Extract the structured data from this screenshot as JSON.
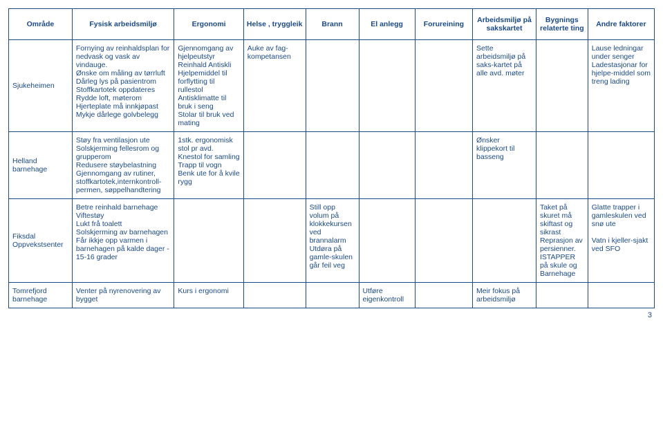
{
  "headers": {
    "omrade": "Område",
    "fysisk": "Fysisk arbeidsmiljø",
    "ergonomi": "Ergonomi",
    "helse": "Helse , tryggleik",
    "brann": "Brann",
    "el": "El anlegg",
    "forureining": "Forureining",
    "arbeidsmiljo": "Arbeidsmiljø på sakskartet",
    "bygnings": "Bygnings relaterte ting",
    "andre": "Andre faktorer"
  },
  "rows": [
    {
      "omrade": "Sjukeheimen",
      "fysisk": "Fornying av reinhaldsplan for nedvask og vask av vindauge.\nØnske om måling av tørrluft\nDårleg lys på pasientrom\nStoffkartotek oppdateres\nRydde loft, møterom\nHjerteplate må innkjøpast\nMykje dårlege golvbelegg",
      "ergonomi": "Gjennomgang av hjelpeutstyr\nReinhald Antiskli\nHjelpemiddel til forflytting til rullestol\nAntisklimatte til bruk i seng\nStolar til bruk ved mating",
      "helse": "Auke av fag-kompetansen",
      "brann": "",
      "el": "",
      "forureining": "",
      "arbeidsmiljo": "Sette arbeidsmiljø på saks-kartet på alle avd. møter",
      "bygnings": "",
      "andre": "Lause ledningar under senger\nLadestasjonar for hjelpe-middel som treng lading"
    },
    {
      "omrade": "Helland barnehage",
      "fysisk": "Støy fra ventilasjon ute\nSolskjerming fellesrom og grupperom\nRedusere støybelastning\nGjennomgang av rutiner, stoffkartotek,internkontroll-permen, søppelhandtering",
      "ergonomi": "1stk. ergonomisk stol pr avd.\nKnestol for samling\nTrapp til vogn\nBenk ute for å kvile rygg",
      "helse": "",
      "brann": "",
      "el": "",
      "forureining": "",
      "arbeidsmiljo": "Ønsker klippekort til basseng",
      "bygnings": "",
      "andre": ""
    },
    {
      "omrade": "Fiksdal Oppvekstsenter",
      "fysisk": "Betre reinhald barnehage\nViftestøy\nLukt frå toalett\nSolskjerming av barnehagen\nFår ikkje opp varmen i barnehagen på kalde dager  -  15-16 grader",
      "ergonomi": "",
      "helse": "",
      "brann": "Still opp volum på klokkekursen ved brannalarm\nUtdøra på gamle-skulen går feil veg",
      "el": "",
      "forureining": "",
      "arbeidsmiljo": "",
      "bygnings": "Taket på skuret må skiftast og sikrast\nReprasjon av persienner.\nISTAPPER på skule og Barnehage",
      "andre": "Glatte trapper i gamleskulen ved snø ute\n\nVatn i kjeller-sjakt ved SFO"
    },
    {
      "omrade": "Tomrefjord barnehage",
      "fysisk": "Venter på nyrenovering av bygget",
      "ergonomi": "Kurs i ergonomi",
      "helse": "",
      "brann": "",
      "el": "Utføre eigenkontroll",
      "forureining": "",
      "arbeidsmiljo": "Meir fokus på arbeidsmiljø",
      "bygnings": "",
      "andre": ""
    }
  ],
  "pageNumber": "3",
  "colors": {
    "border": "#1a4a8a",
    "text": "#1a4a8a",
    "background": "#ffffff"
  },
  "font": {
    "family": "Arial",
    "size_pt": 8
  }
}
